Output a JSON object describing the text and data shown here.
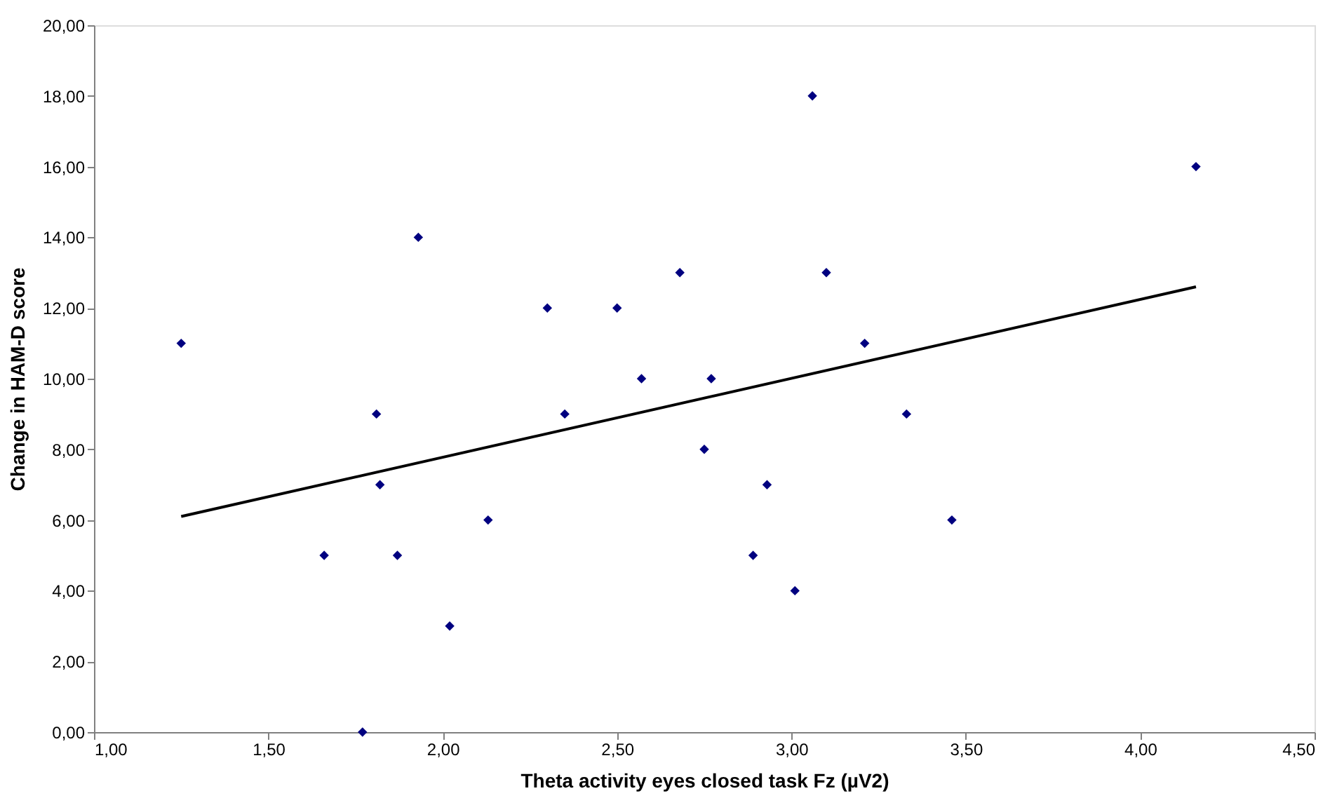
{
  "chart_data": {
    "type": "scatter",
    "xlabel": "Theta activity eyes closed task Fz (µV2)",
    "ylabel": "Change in HAM-D score",
    "xlim": [
      1.0,
      4.5
    ],
    "ylim": [
      0,
      20
    ],
    "xticks": [
      {
        "value": 1.0,
        "label": "1,00"
      },
      {
        "value": 1.5,
        "label": "1,50"
      },
      {
        "value": 2.0,
        "label": "2,00"
      },
      {
        "value": 2.5,
        "label": "2,50"
      },
      {
        "value": 3.0,
        "label": "3,00"
      },
      {
        "value": 3.5,
        "label": "3,50"
      },
      {
        "value": 4.0,
        "label": "4,00"
      },
      {
        "value": 4.5,
        "label": "4,50"
      }
    ],
    "yticks": [
      {
        "value": 0,
        "label": "0,00"
      },
      {
        "value": 2,
        "label": "2,00"
      },
      {
        "value": 4,
        "label": "4,00"
      },
      {
        "value": 6,
        "label": "6,00"
      },
      {
        "value": 8,
        "label": "8,00"
      },
      {
        "value": 10,
        "label": "10,00"
      },
      {
        "value": 12,
        "label": "12,00"
      },
      {
        "value": 14,
        "label": "14,00"
      },
      {
        "value": 16,
        "label": "16,00"
      },
      {
        "value": 18,
        "label": "18,00"
      },
      {
        "value": 20,
        "label": "20,00"
      }
    ],
    "grid": false,
    "series": [
      {
        "color": "#000080",
        "marker": "diamond",
        "x": [
          1.25,
          1.66,
          1.81,
          1.82,
          1.77,
          1.87,
          1.93,
          2.02,
          2.13,
          2.3,
          2.35,
          2.5,
          2.57,
          2.68,
          2.75,
          2.77,
          2.89,
          2.93,
          3.01,
          3.06,
          3.1,
          3.21,
          3.33,
          3.46,
          4.16
        ],
        "values": [
          11,
          5,
          9,
          7,
          0,
          5,
          14,
          3,
          6,
          12,
          9,
          12,
          10,
          13,
          8,
          10,
          5,
          7,
          4,
          18,
          13,
          11,
          9,
          6,
          16
        ]
      },
      {
        "type": "line",
        "color": "#000000",
        "line_style": "solid",
        "x": [
          1.25,
          4.16
        ],
        "values": [
          6.1,
          12.6
        ]
      }
    ]
  }
}
